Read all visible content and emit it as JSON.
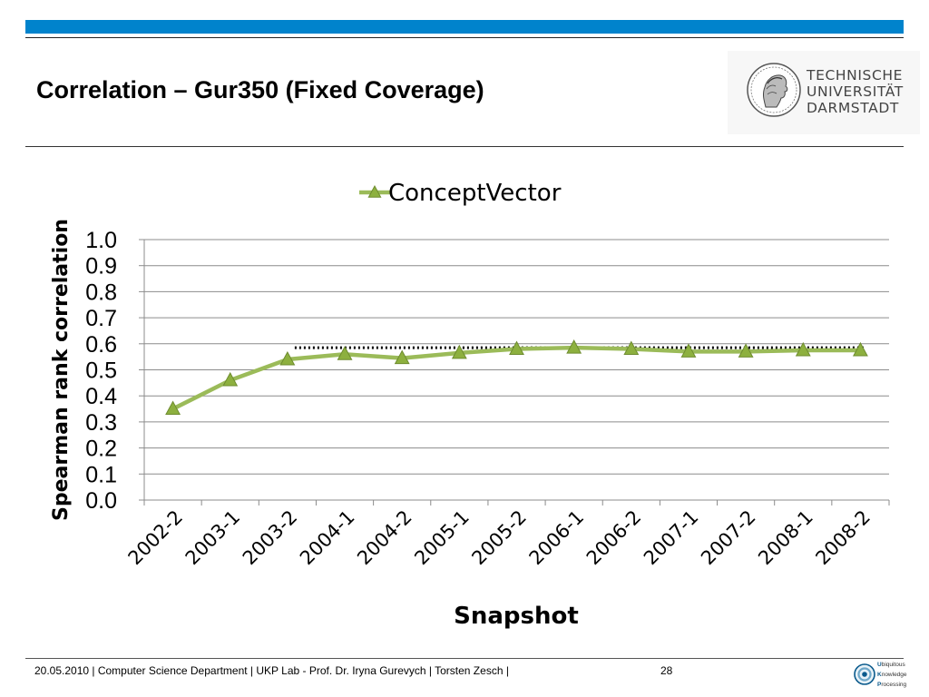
{
  "slide": {
    "title": "Correlation – Gur350 (Fixed Coverage)",
    "page_number": "28",
    "colors": {
      "header_bar": "#0083cc",
      "series": "#9bbb59",
      "marker": "#8db03f"
    }
  },
  "logo": {
    "icon": "athena-seal-icon",
    "lines": [
      "TECHNISCHE",
      "UNIVERSITÄT",
      "DARMSTADT"
    ]
  },
  "footer": {
    "text": "20.05.2010  |  Computer Science Department   |   UKP Lab  -  Prof. Dr. Iryna Gurevych   | Torsten Zesch |"
  },
  "ukp": {
    "icon": "ukp-logo-icon",
    "lines": [
      {
        "initial": "U",
        "rest": "biquitous"
      },
      {
        "initial": "K",
        "rest": "nowledge"
      },
      {
        "initial": "P",
        "rest": "rocessing"
      }
    ]
  },
  "chart_data": {
    "type": "line",
    "categories": [
      "2002-2",
      "2003-1",
      "2003-2",
      "2004-1",
      "2004-2",
      "2005-1",
      "2005-2",
      "2006-1",
      "2006-2",
      "2007-1",
      "2007-2",
      "2008-1",
      "2008-2"
    ],
    "series": [
      {
        "name": "ConceptVector",
        "values": [
          0.35,
          0.46,
          0.54,
          0.56,
          0.545,
          0.565,
          0.58,
          0.585,
          0.58,
          0.57,
          0.57,
          0.575,
          0.575
        ],
        "color": "#9bbb59",
        "marker": "triangle"
      }
    ],
    "trendline": {
      "style": "dotted",
      "color": "#000000",
      "from": "2003-2",
      "to": "2008-2",
      "value": 0.585
    },
    "xlabel": "Snapshot",
    "ylabel": "Spearman rank correlation",
    "ylim": [
      0,
      1.0
    ],
    "yticks": [
      "0.0",
      "0.1",
      "0.2",
      "0.3",
      "0.4",
      "0.5",
      "0.6",
      "0.7",
      "0.8",
      "0.9",
      "1.0"
    ],
    "grid": true,
    "legend": "top-center"
  }
}
